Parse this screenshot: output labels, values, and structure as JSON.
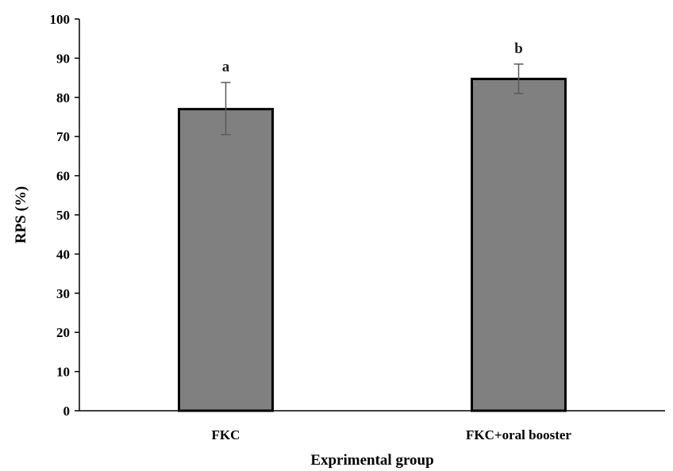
{
  "chart_data": {
    "type": "bar",
    "categories": [
      "FKC",
      "FKC+oral booster"
    ],
    "values": [
      77,
      84.7
    ],
    "error_low": [
      70.5,
      81
    ],
    "error_high": [
      83.8,
      88.5
    ],
    "significance_labels": [
      "a",
      "b"
    ],
    "xlabel": "Exprimental group",
    "ylabel": "RPS (%)",
    "ylim": [
      0,
      100
    ],
    "yticks": [
      "0",
      "10",
      "20",
      "30",
      "40",
      "50",
      "60",
      "70",
      "80",
      "90",
      "100"
    ],
    "grid": false,
    "colors": {
      "bar_fill": "#808080",
      "bar_stroke": "#000000",
      "error_bar": "#595959",
      "axis": "#000000"
    }
  }
}
